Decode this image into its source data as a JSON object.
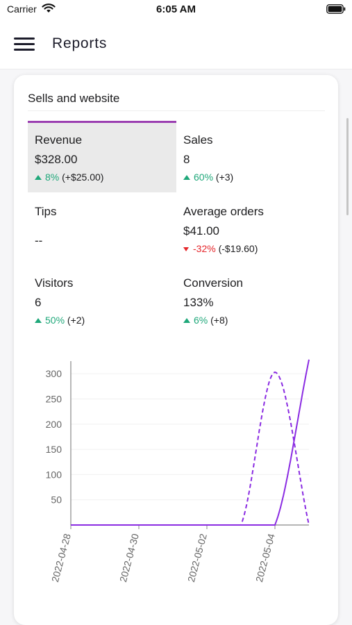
{
  "status_bar": {
    "carrier": "Carrier",
    "time": "6:05 AM"
  },
  "header": {
    "title": "Reports",
    "menu_icon": "hamburger-menu-icon"
  },
  "card": {
    "title": "Sells and website",
    "metrics": [
      {
        "label": "Revenue",
        "value": "$328.00",
        "delta_pct": "8%",
        "delta_abs": "(+$25.00)",
        "trend": "up",
        "selected": true
      },
      {
        "label": "Sales",
        "value": "8",
        "delta_pct": "60%",
        "delta_abs": "(+3)",
        "trend": "up",
        "selected": false
      },
      {
        "label": "Tips",
        "value": "--",
        "delta_pct": "",
        "delta_abs": "",
        "trend": "none",
        "selected": false
      },
      {
        "label": "Average orders",
        "value": "$41.00",
        "delta_pct": "-32%",
        "delta_abs": "(-$19.60)",
        "trend": "down",
        "selected": false
      },
      {
        "label": "Visitors",
        "value": "6",
        "delta_pct": "50%",
        "delta_abs": "(+2)",
        "trend": "up",
        "selected": false
      },
      {
        "label": "Conversion",
        "value": "133%",
        "delta_pct": "6%",
        "delta_abs": "(+8)",
        "trend": "up",
        "selected": false
      }
    ]
  },
  "colors": {
    "accent": "#9b3fb1",
    "line": "#8a2be2",
    "up": "#1fa87a",
    "down": "#e5262b"
  },
  "chart_data": {
    "type": "line",
    "title": "",
    "xlabel": "",
    "ylabel": "",
    "x_ticks": [
      "2022-04-28",
      "2022-04-30",
      "2022-05-02",
      "2022-05-04"
    ],
    "y_ticks": [
      50,
      100,
      150,
      200,
      250,
      300
    ],
    "xlim": [
      "2022-04-28",
      "2022-05-05"
    ],
    "ylim": [
      0,
      325
    ],
    "grid": true,
    "legend": "none",
    "series": [
      {
        "style": "solid",
        "x": [
          "2022-04-28",
          "2022-04-29",
          "2022-04-30",
          "2022-05-01",
          "2022-05-02",
          "2022-05-03",
          "2022-05-04",
          "2022-05-05"
        ],
        "values": [
          0,
          0,
          0,
          0,
          0,
          0,
          0,
          328
        ]
      },
      {
        "style": "dashed",
        "x": [
          "2022-04-28",
          "2022-04-29",
          "2022-04-30",
          "2022-05-01",
          "2022-05-02",
          "2022-05-03",
          "2022-05-04",
          "2022-05-05"
        ],
        "values": [
          0,
          0,
          0,
          0,
          0,
          0,
          303,
          0
        ]
      }
    ]
  }
}
